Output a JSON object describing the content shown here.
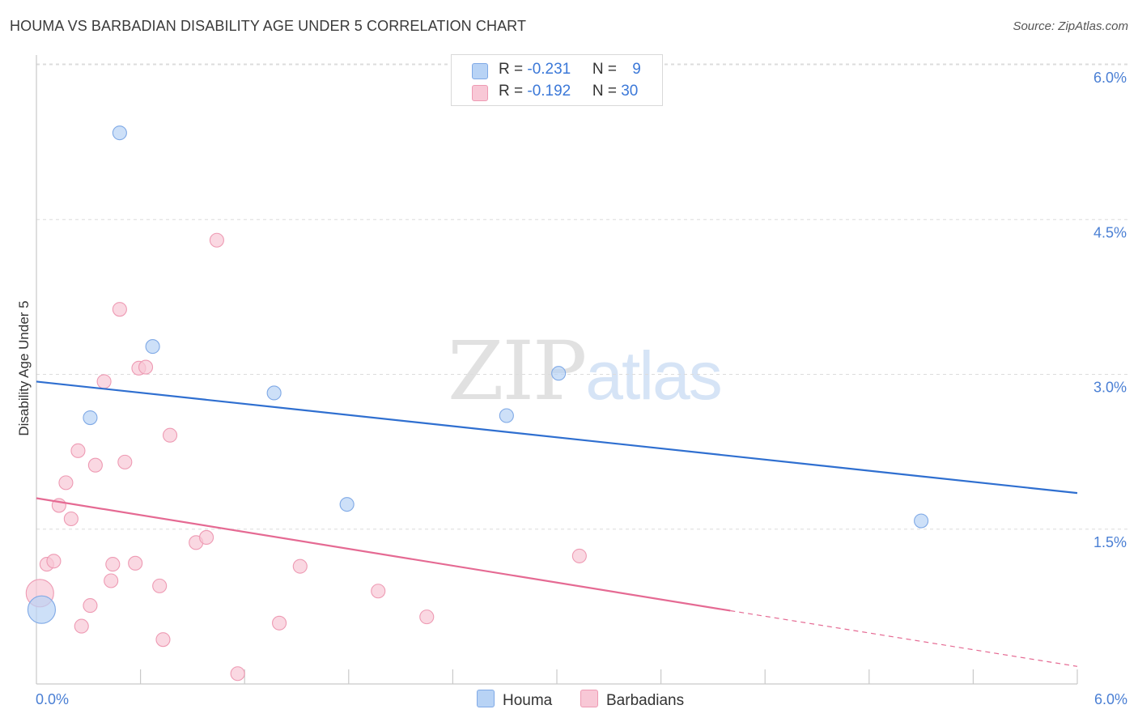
{
  "title": "HOUMA VS BARBADIAN DISABILITY AGE UNDER 5 CORRELATION CHART",
  "source": "Source: ZipAtlas.com",
  "watermark": {
    "part1": "ZIP",
    "part2": "atlas"
  },
  "legend_stats": [
    {
      "r_label": "R = ",
      "r_value": "-0.231",
      "n_label": "N = ",
      "n_value": "9",
      "color": "#b8d3f5"
    },
    {
      "r_label": "R = ",
      "r_value": "-0.192",
      "n_label": "N = ",
      "n_value": "30",
      "color": "#f8c8d6"
    }
  ],
  "legend_series": [
    {
      "label": "Houma",
      "color": "#b8d3f5"
    },
    {
      "label": "Barbadians",
      "color": "#f8c8d6"
    }
  ],
  "chart_data": {
    "type": "scatter",
    "title": "HOUMA VS BARBADIAN DISABILITY AGE UNDER 5 CORRELATION CHART",
    "xlabel": "",
    "ylabel": "Disability Age Under 5",
    "xlim": [
      0,
      6
    ],
    "ylim": [
      0,
      6.15
    ],
    "x_tick_labels": [
      "0.0%",
      "6.0%"
    ],
    "y_ticks": [
      1.5,
      3.0,
      4.5,
      6.0
    ],
    "y_tick_labels": [
      "1.5%",
      "3.0%",
      "4.5%",
      "6.0%"
    ],
    "series": [
      {
        "name": "Houma",
        "color": "#7fa9e6",
        "fill": "#b8d3f5",
        "line_color": "#2f6fd0",
        "points": [
          {
            "x": 0.03,
            "y": 0.72,
            "size": "large"
          },
          {
            "x": 0.31,
            "y": 2.58
          },
          {
            "x": 0.48,
            "y": 5.34
          },
          {
            "x": 0.67,
            "y": 3.27
          },
          {
            "x": 1.37,
            "y": 2.82
          },
          {
            "x": 1.79,
            "y": 1.74
          },
          {
            "x": 2.71,
            "y": 2.6
          },
          {
            "x": 3.01,
            "y": 3.01
          },
          {
            "x": 5.1,
            "y": 1.58
          }
        ],
        "trend": {
          "x_start": 0,
          "y_start": 2.93,
          "x_end": 6.0,
          "y_end": 1.85
        }
      },
      {
        "name": "Barbadians",
        "color": "#ee9ab3",
        "fill": "#f8c8d6",
        "line_color": "#e56a93",
        "points": [
          {
            "x": 0.02,
            "y": 0.88,
            "size": "large"
          },
          {
            "x": 0.06,
            "y": 1.16
          },
          {
            "x": 0.1,
            "y": 1.19
          },
          {
            "x": 0.13,
            "y": 1.73
          },
          {
            "x": 0.17,
            "y": 1.95
          },
          {
            "x": 0.2,
            "y": 1.6
          },
          {
            "x": 0.24,
            "y": 2.26
          },
          {
            "x": 0.26,
            "y": 0.56
          },
          {
            "x": 0.31,
            "y": 0.76
          },
          {
            "x": 0.34,
            "y": 2.12
          },
          {
            "x": 0.39,
            "y": 2.93
          },
          {
            "x": 0.43,
            "y": 1.0
          },
          {
            "x": 0.44,
            "y": 1.16
          },
          {
            "x": 0.48,
            "y": 3.63
          },
          {
            "x": 0.51,
            "y": 2.15
          },
          {
            "x": 0.57,
            "y": 1.17
          },
          {
            "x": 0.59,
            "y": 3.06
          },
          {
            "x": 0.63,
            "y": 3.07
          },
          {
            "x": 0.71,
            "y": 0.95
          },
          {
            "x": 0.73,
            "y": 0.43
          },
          {
            "x": 0.77,
            "y": 2.41
          },
          {
            "x": 0.92,
            "y": 1.37
          },
          {
            "x": 0.98,
            "y": 1.42
          },
          {
            "x": 1.04,
            "y": 4.3
          },
          {
            "x": 1.16,
            "y": 0.1
          },
          {
            "x": 1.4,
            "y": 0.59
          },
          {
            "x": 1.52,
            "y": 1.14
          },
          {
            "x": 1.97,
            "y": 0.9
          },
          {
            "x": 2.25,
            "y": 0.65
          },
          {
            "x": 3.13,
            "y": 1.24
          }
        ],
        "trend": {
          "x_start": 0,
          "y_start": 1.8,
          "x_solid_end": 4.0,
          "y_solid_end": 0.71,
          "x_end": 6.0,
          "y_end": 0.17
        }
      }
    ]
  }
}
